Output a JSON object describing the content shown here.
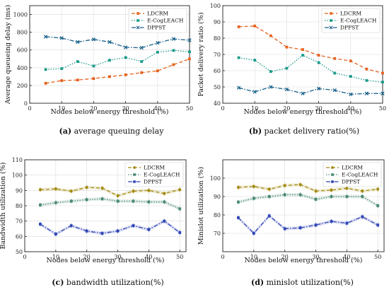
{
  "colors": {
    "LDCRM": "#e6621e",
    "E-CogLEACH": "#1a9a8a",
    "DPPST": "#17618a",
    "LDCRM2": "#a48a10",
    "ECog2": "#4a8a70",
    "DPPST2": "#2f45b5"
  },
  "chart_data": [
    {
      "type": "line",
      "caption_letter": "(a)",
      "caption_text": "average queuing delay",
      "xlabel": "Nodes below energy threshold (%)",
      "ylabel": "Average queueing delay (ms)",
      "xlim": [
        0,
        50
      ],
      "ylim": [
        0,
        1100
      ],
      "xticks": [
        "0",
        "10",
        "20",
        "30",
        "40",
        "50"
      ],
      "yticks": [
        "0",
        "200",
        "400",
        "600",
        "800",
        "1000"
      ],
      "legend_position": "top-right",
      "x": [
        5,
        10,
        15,
        20,
        25,
        30,
        35,
        40,
        45,
        50
      ],
      "series": [
        {
          "name": "LDCRM",
          "style": "orange-dash-square",
          "values": [
            225,
            255,
            262,
            278,
            300,
            320,
            345,
            365,
            435,
            500
          ]
        },
        {
          "name": "E-CogLEACH",
          "style": "teal-dot-square",
          "values": [
            380,
            390,
            470,
            420,
            485,
            515,
            470,
            575,
            595,
            580
          ]
        },
        {
          "name": "DPPST",
          "style": "blue-dashdot-x",
          "values": [
            750,
            735,
            690,
            720,
            690,
            630,
            625,
            680,
            725,
            710
          ]
        }
      ]
    },
    {
      "type": "line",
      "caption_letter": "(b)",
      "caption_text": "packet delivery ratio(%)",
      "xlabel": "Nodes below energy threshold (%)",
      "ylabel": "Packet delivery ratio (%)",
      "xlim": [
        0,
        50
      ],
      "ylim": [
        40,
        100
      ],
      "xticks": [
        "0",
        "10",
        "20",
        "30",
        "40",
        "50"
      ],
      "yticks": [
        "40",
        "50",
        "60",
        "70",
        "80",
        "90",
        "100"
      ],
      "legend_position": "top-right",
      "x": [
        5,
        10,
        15,
        20,
        25,
        30,
        35,
        40,
        45,
        50
      ],
      "series": [
        {
          "name": "LDCRM",
          "style": "orange-dash-square",
          "values": [
            87,
            87.5,
            81.5,
            74.5,
            73,
            69.5,
            67.5,
            66,
            61,
            58.5
          ]
        },
        {
          "name": "E-CogLEACH",
          "style": "teal-dot-square",
          "values": [
            68,
            66.5,
            59.5,
            61.5,
            69.5,
            65,
            58.5,
            56.5,
            54,
            53
          ]
        },
        {
          "name": "DPPST",
          "style": "blue-dashdot-x",
          "values": [
            49.5,
            47,
            50,
            48.5,
            46,
            49,
            48,
            45.5,
            46,
            46
          ]
        }
      ]
    },
    {
      "type": "line",
      "caption_letter": "(c)",
      "caption_text": "bandwidth utilization(%)",
      "xlabel": "Nodes below energy threshold (%)",
      "ylabel": "Bandwidth utilization (%)",
      "xlim": [
        0,
        52
      ],
      "ylim": [
        50,
        110
      ],
      "xticks": [
        "0",
        "10",
        "20",
        "30",
        "40",
        "50"
      ],
      "yticks": [
        "50",
        "60",
        "70",
        "80",
        "90",
        "100",
        "110"
      ],
      "legend_position": "top-right",
      "x": [
        5,
        10,
        15,
        20,
        25,
        30,
        35,
        40,
        45,
        50
      ],
      "series": [
        {
          "name": "LDCRM",
          "style": "gold-dash-dot",
          "values": [
            90.5,
            91,
            89.5,
            92,
            91.5,
            86.5,
            89.5,
            90,
            88,
            90.5
          ]
        },
        {
          "name": "E-CogLEACH",
          "style": "green-dot-square",
          "values": [
            80.5,
            82,
            83,
            84,
            84.5,
            83,
            83,
            82.5,
            82.5,
            78
          ]
        },
        {
          "name": "DPPST",
          "style": "royal-dashdot-square",
          "values": [
            68,
            61.5,
            67,
            63.5,
            62,
            63.5,
            67,
            64.5,
            70,
            62.5
          ]
        }
      ]
    },
    {
      "type": "line",
      "caption_letter": "(d)",
      "caption_text": "minislot utilization(%)",
      "xlabel": "Nodes below energy threshold (%)",
      "ylabel": "Minislot utilization (%)",
      "xlim": [
        0,
        52
      ],
      "ylim": [
        60,
        110
      ],
      "xticks": [
        "0",
        "10",
        "20",
        "30",
        "40",
        "50"
      ],
      "yticks": [
        "70",
        "80",
        "90",
        "100"
      ],
      "legend_position": "top-right",
      "x": [
        5,
        10,
        15,
        20,
        25,
        30,
        35,
        40,
        45,
        50
      ],
      "series": [
        {
          "name": "LDCRM",
          "style": "gold-dash-dot",
          "values": [
            95,
            95.5,
            94,
            96,
            96.5,
            93,
            93.5,
            94.5,
            93,
            94
          ]
        },
        {
          "name": "E-CogLEACH",
          "style": "green-dot-square",
          "values": [
            87,
            89,
            90,
            91,
            91,
            88.5,
            90,
            90,
            90,
            85
          ]
        },
        {
          "name": "DPPST",
          "style": "royal-dashdot-square",
          "values": [
            78.5,
            70,
            79.5,
            72.5,
            73,
            74.5,
            76.5,
            75.5,
            79,
            74.5
          ]
        }
      ]
    }
  ]
}
